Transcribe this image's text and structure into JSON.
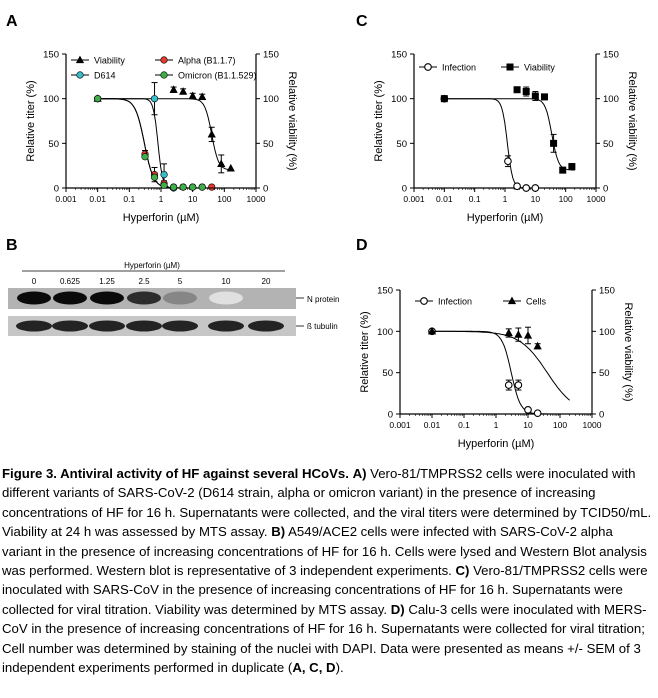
{
  "figure": {
    "panel_labels": [
      "A",
      "B",
      "C",
      "D"
    ],
    "caption": {
      "title": "Figure 3. Antiviral activity of HF against several HCoVs.",
      "A_label": "A)",
      "A_text": "Vero-81/TMPRSS2 cells were inoculated with different variants of SARS-CoV-2 (D614 strain, alpha or omicron variant) in the presence of increasing concentrations of HF for 16 h. Supernatants were collected, and the viral titers were determined by TCID50/mL. Viability at 24 h was assessed by MTS assay.",
      "B_label": "B)",
      "B_text": "A549/ACE2 cells were infected with SARS-CoV-2 alpha variant in the presence of increasing concentrations of HF for 16 h. Cells were lysed and Western Blot analysis was performed. Western blot is representative of 3 independent experiments.",
      "C_label": "C)",
      "C_text": "Vero-81/TMPRSS2 cells were inoculated with SARS-CoV in the presence of increasing concentrations of HF for 16 h. Supernatants were collected for viral titration. Viability was determined by MTS assay.",
      "D_label": "D)",
      "D_text": "Calu-3 cells were inoculated with MERS-CoV in the presence of increasing concentrations of HF for 16 h. Supernatants were collected for viral titration; Cell number was determined by staining of the nuclei with DAPI. Data were presented as means +/- SEM of 3 independent experiments performed in duplicate",
      "end_open": "(",
      "end_bold": "A, C, D",
      "end_close": ")."
    },
    "western_blot": {
      "header": "Hyperforin (µM)",
      "lanes": [
        "0",
        "0.625",
        "1.25",
        "2.5",
        "5",
        "10",
        "20"
      ],
      "band_labels": [
        "N protein",
        "ß tubulin"
      ],
      "n_protein_intensity": [
        1.0,
        1.0,
        1.0,
        0.85,
        0.45,
        0.05,
        0.0
      ],
      "tubulin_intensity": [
        1.0,
        1.0,
        1.0,
        1.0,
        1.0,
        1.0,
        1.0
      ]
    }
  },
  "chart_data": [
    {
      "panel": "A",
      "type": "scatter",
      "xlabel": "Hyperforin (µM)",
      "ylabel": "Relative titer (%)",
      "ylabel_right": "Relative viability (%)",
      "xscale": "log",
      "xlim": [
        0.001,
        1000
      ],
      "ylim": [
        0,
        150
      ],
      "x_ticks": [
        "0.001",
        "0.01",
        "0.1",
        "1",
        "10",
        "100",
        "1000"
      ],
      "y_ticks": [
        "0",
        "50",
        "100",
        "150"
      ],
      "legend_position": "top",
      "series": [
        {
          "name": "Viability",
          "marker": "triangle",
          "color": "#000000",
          "x": [
            0.01,
            2.5,
            5,
            10,
            20,
            40,
            80,
            160
          ],
          "y": [
            100,
            110,
            108,
            103,
            102,
            60,
            27,
            22
          ],
          "err": [
            0,
            3,
            3,
            3,
            3,
            8,
            10,
            0
          ]
        },
        {
          "name": "D614",
          "marker": "circle",
          "color": "#38bcc8",
          "x": [
            0.01,
            0.625,
            1.25,
            2.5
          ],
          "y": [
            100,
            100,
            15,
            0
          ],
          "err": [
            0,
            18,
            12,
            0
          ]
        },
        {
          "name": "Alpha (B1.1.7)",
          "marker": "circle",
          "color": "#e63b2e",
          "x": [
            0.01,
            0.3125,
            0.625,
            1.25,
            2.5,
            5,
            10,
            20,
            40
          ],
          "y": [
            100,
            38,
            15,
            5,
            1,
            1,
            1,
            1,
            1
          ],
          "err": [
            0,
            4,
            8,
            3,
            0,
            0,
            0,
            0,
            0
          ]
        },
        {
          "name": "Omicron (B1.1.529)",
          "marker": "circle",
          "color": "#3fae49",
          "x": [
            0.01,
            0.3125,
            0.625,
            1.25,
            2.5,
            5,
            10,
            20
          ],
          "y": [
            100,
            35,
            12,
            3,
            1,
            1,
            1,
            1
          ],
          "err": [
            0,
            0,
            0,
            0,
            0,
            0,
            0,
            0
          ]
        }
      ]
    },
    {
      "panel": "C",
      "type": "scatter",
      "xlabel": "Hyperforin (µM)",
      "ylabel": "Relative titer (%)",
      "ylabel_right": "Relative viability (%)",
      "xscale": "log",
      "xlim": [
        0.001,
        1000
      ],
      "ylim": [
        0,
        150
      ],
      "x_ticks": [
        "0.001",
        "0.01",
        "0.1",
        "1",
        "10",
        "100",
        "1000"
      ],
      "y_ticks": [
        "0",
        "50",
        "100",
        "150"
      ],
      "legend_position": "top",
      "series": [
        {
          "name": "Infection",
          "marker": "open-circle",
          "color": "#000000",
          "x": [
            0.01,
            1.25,
            2.5,
            5,
            10
          ],
          "y": [
            100,
            30,
            2,
            0,
            0
          ],
          "err": [
            0,
            6,
            0,
            0,
            0
          ]
        },
        {
          "name": "Viability",
          "marker": "square",
          "color": "#000000",
          "x": [
            0.01,
            2.5,
            5,
            10,
            20,
            40,
            80,
            160
          ],
          "y": [
            100,
            110,
            108,
            103,
            102,
            50,
            20,
            24
          ],
          "err": [
            0,
            2,
            5,
            5,
            3,
            10,
            0,
            0
          ]
        }
      ]
    },
    {
      "panel": "D",
      "type": "scatter",
      "xlabel": "Hyperforin (µM)",
      "ylabel": "Relative titer (%)",
      "ylabel_right": "Relative viability (%)",
      "xscale": "log",
      "xlim": [
        0.001,
        1000
      ],
      "ylim": [
        0,
        150
      ],
      "x_ticks": [
        "0.001",
        "0.01",
        "0.1",
        "1",
        "10",
        "100",
        "1000"
      ],
      "y_ticks": [
        "0",
        "50",
        "100",
        "150"
      ],
      "legend_position": "top",
      "series": [
        {
          "name": "Infection",
          "marker": "open-circle",
          "color": "#000000",
          "x": [
            0.01,
            2.5,
            5,
            10,
            20
          ],
          "y": [
            100,
            35,
            35,
            5,
            1
          ],
          "err": [
            0,
            6,
            6,
            0,
            0
          ]
        },
        {
          "name": "Cells",
          "marker": "triangle",
          "color": "#000000",
          "x": [
            0.01,
            2.5,
            5,
            10,
            20
          ],
          "y": [
            100,
            98,
            96,
            95,
            82
          ],
          "err": [
            0,
            5,
            8,
            10,
            3
          ]
        }
      ]
    }
  ]
}
